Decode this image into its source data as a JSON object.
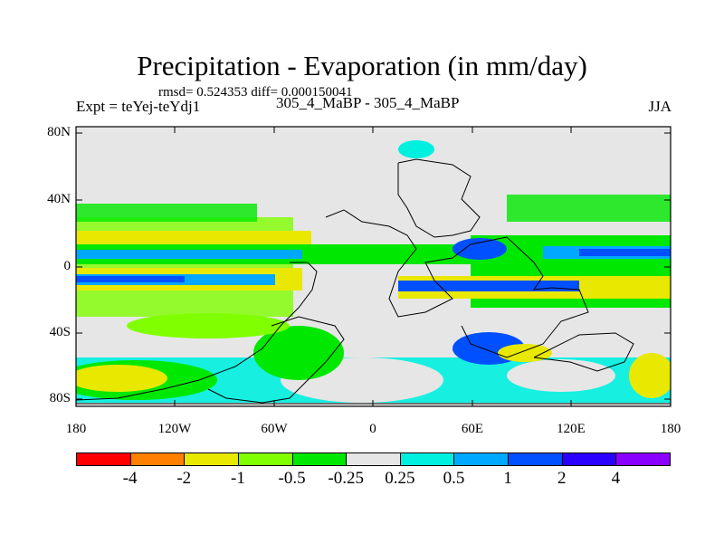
{
  "chart_data": {
    "type": "heatmap",
    "title": "Precipitation - Evaporation (in mm/day)",
    "subtitle": "rmsd= 0.524353 diff= 0.000150041",
    "left_label": "Expt = teYej-teYdj1",
    "center_label": "305_4_MaBP - 305_4_MaBP",
    "right_label": "JJA",
    "y_ticks": [
      "80N",
      "40N",
      "0",
      "40S",
      "80S"
    ],
    "x_ticks": [
      "180",
      "120W",
      "60W",
      "0",
      "60E",
      "120E",
      "180"
    ],
    "colorbar": {
      "levels": [
        "-4",
        "-2",
        "-1",
        "-0.5",
        "-0.25",
        "0.25",
        "0.5",
        "1",
        "2",
        "4"
      ],
      "colors": [
        "#ff0000",
        "#ff8000",
        "#e8e800",
        "#80ff00",
        "#00e800",
        "#e6e6e6",
        "#00f0e0",
        "#00a8ff",
        "#0050ff",
        "#2a00ff",
        "#8a00ff"
      ]
    }
  }
}
